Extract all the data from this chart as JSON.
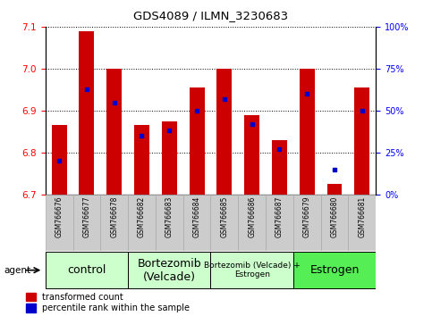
{
  "title": "GDS4089 / ILMN_3230683",
  "samples": [
    "GSM766676",
    "GSM766677",
    "GSM766678",
    "GSM766682",
    "GSM766683",
    "GSM766684",
    "GSM766685",
    "GSM766686",
    "GSM766687",
    "GSM766679",
    "GSM766680",
    "GSM766681"
  ],
  "red_values": [
    6.865,
    7.09,
    7.0,
    6.865,
    6.875,
    6.955,
    7.0,
    6.89,
    6.83,
    7.0,
    6.725,
    6.955
  ],
  "blue_percentiles": [
    20,
    63,
    55,
    35,
    38,
    50,
    57,
    42,
    27,
    60,
    15,
    50
  ],
  "y_min": 6.7,
  "y_max": 7.1,
  "y_ticks": [
    6.7,
    6.8,
    6.9,
    7.0,
    7.1
  ],
  "right_y_ticks": [
    0,
    25,
    50,
    75,
    100
  ],
  "right_y_labels": [
    "0%",
    "25%",
    "50%",
    "75%",
    "100%"
  ],
  "group_labels": [
    "control",
    "Bortezomib\n(Velcade)",
    "Bortezomib (Velcade) +\nEstrogen",
    "Estrogen"
  ],
  "group_ranges": [
    [
      0,
      2
    ],
    [
      3,
      5
    ],
    [
      6,
      8
    ],
    [
      9,
      11
    ]
  ],
  "group_colors": [
    "#ccffcc",
    "#ccffcc",
    "#ccffcc",
    "#55ee55"
  ],
  "group_label_fontsizes": [
    9,
    9,
    6.5,
    9
  ],
  "bar_color": "#cc0000",
  "dot_color": "#0000cc",
  "bar_base": 6.7,
  "bar_width": 0.55,
  "legend_red": "transformed count",
  "legend_blue": "percentile rank within the sample",
  "agent_label": "agent",
  "tick_bg_color": "#cccccc",
  "tick_border_color": "#aaaaaa",
  "fig_bg_color": "#ffffff"
}
